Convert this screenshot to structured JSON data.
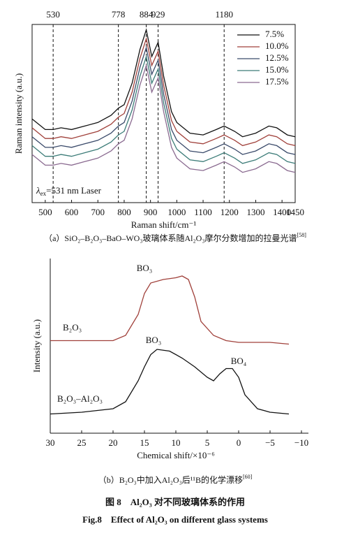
{
  "chart_data": [
    {
      "type": "line",
      "ylabel": "Raman intensity (a.u.)",
      "xlabel": "Raman shift/cm⁻¹",
      "x": [
        450,
        500,
        530,
        560,
        600,
        650,
        700,
        750,
        778,
        800,
        830,
        860,
        884,
        905,
        929,
        950,
        980,
        1000,
        1050,
        1100,
        1150,
        1180,
        1220,
        1250,
        1300,
        1350,
        1380,
        1420,
        1450
      ],
      "series": [
        {
          "name": "7.5%",
          "color": "#111111",
          "values": [
            47,
            41,
            41,
            42,
            41,
            43,
            45,
            49,
            53,
            55,
            67,
            86,
            97,
            82,
            90,
            71,
            51,
            45,
            39,
            38,
            41,
            43,
            40,
            37,
            39,
            43,
            42,
            38,
            37
          ]
        },
        {
          "name": "10.0%",
          "color": "#a0403a",
          "values": [
            42,
            36,
            36,
            37,
            36,
            38,
            40,
            44,
            48,
            50,
            62,
            81,
            92,
            77,
            85,
            66,
            46,
            40,
            34,
            33,
            36,
            38,
            35,
            32,
            34,
            38,
            37,
            33,
            32
          ]
        },
        {
          "name": "12.5%",
          "color": "#3a4a6a",
          "values": [
            37,
            31,
            31,
            32,
            31,
            33,
            35,
            39,
            43,
            45,
            57,
            76,
            87,
            72,
            80,
            61,
            41,
            35,
            29,
            28,
            31,
            33,
            30,
            27,
            29,
            33,
            32,
            28,
            27
          ]
        },
        {
          "name": "15.0%",
          "color": "#3c7c78",
          "values": [
            32,
            26,
            26,
            27,
            26,
            28,
            30,
            34,
            38,
            40,
            52,
            71,
            82,
            67,
            75,
            56,
            36,
            30,
            24,
            23,
            26,
            28,
            25,
            22,
            24,
            28,
            27,
            23,
            22
          ]
        },
        {
          "name": "17.5%",
          "color": "#8a6a90",
          "values": [
            27,
            21,
            21,
            22,
            21,
            23,
            25,
            29,
            33,
            35,
            47,
            66,
            77,
            62,
            70,
            51,
            31,
            25,
            19,
            18,
            21,
            23,
            20,
            17,
            19,
            23,
            22,
            18,
            17
          ]
        }
      ],
      "vlines": [
        530,
        778,
        884,
        929,
        1180
      ],
      "annotation": {
        "symbol": "λ",
        "subscript": "ex",
        "text": "=531 nm Laser"
      },
      "xlim": [
        450,
        1450
      ],
      "xticks": [
        500,
        600,
        700,
        800,
        900,
        1000,
        1100,
        1200,
        1300,
        1400,
        1450
      ],
      "ylim": [
        0,
        100
      ],
      "legend": "top-right",
      "caption": "（a）SiO₂–B₂O₃–BaO–WO₃玻璃体系随Al₂O₃摩尔分数增加的拉曼光谱",
      "caption_ref": "[58]"
    },
    {
      "type": "line",
      "ylabel": "Intensity (a.u.)",
      "xlabel": "Chemical shift/×10⁻⁶",
      "series": [
        {
          "name": "B₂O₃",
          "color": "#a0403a",
          "x": [
            30,
            20,
            18,
            16,
            15,
            14,
            12,
            10,
            9,
            8,
            7,
            6,
            4,
            2,
            0,
            -5,
            -8
          ],
          "values": [
            53,
            53,
            56,
            68,
            80,
            86,
            88,
            89,
            90,
            88,
            78,
            64,
            56,
            53,
            52,
            52,
            51
          ]
        },
        {
          "name": "B₂O₃–Al₂O₃",
          "color": "#111111",
          "x": [
            30,
            25,
            20,
            18,
            16,
            15,
            14,
            13,
            11,
            9,
            7,
            5,
            4,
            3,
            2,
            1,
            0,
            -1,
            -3,
            -5,
            -8
          ],
          "values": [
            11,
            12,
            14,
            18,
            30,
            38,
            45,
            48,
            47,
            43,
            38,
            32,
            30,
            34,
            37,
            37,
            32,
            22,
            14,
            12,
            11
          ]
        }
      ],
      "annotations": [
        "BO₃",
        "BO₃",
        "BO₄"
      ],
      "xlim": [
        30,
        -10
      ],
      "xticks": [
        30,
        25,
        20,
        15,
        10,
        5,
        0,
        {
          "value": -5,
          "label": "−5"
        },
        {
          "value": -10,
          "label": "−10"
        }
      ],
      "ylim": [
        0,
        100
      ],
      "caption": "（b）B₂O₃中加入Al₂O₃后¹¹B的化学漂移",
      "caption_ref": "[60]"
    }
  ],
  "figure": {
    "title_cn": "图 8　Al₂O₃ 对不同玻璃体系的作用",
    "title_en": "Fig.8　Effect of Al₂O₃ on different glass systems"
  }
}
